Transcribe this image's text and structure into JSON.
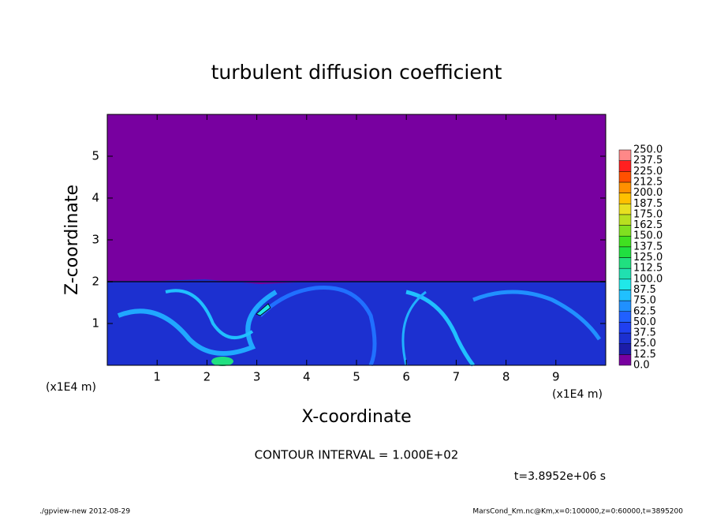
{
  "chart_data": {
    "type": "contour",
    "title": "turbulent diffusion coefficient",
    "x_label": "X-coordinate",
    "y_label": "Z-coordinate",
    "x_unit_label": "(x1E4 m)",
    "y_unit_label": "(x1E4 m)",
    "xlim": [
      0,
      10
    ],
    "xticks": [
      1,
      2,
      3,
      4,
      5,
      6,
      7,
      8,
      9
    ],
    "ylim": [
      0,
      6
    ],
    "yticks": [
      1,
      2,
      3,
      4,
      5
    ],
    "colorbar": {
      "clim": [
        0,
        250
      ],
      "levels": [
        {
          "value": 0,
          "label": "0.0"
        },
        12.5,
        {
          "value": 25,
          "label": "25.0"
        },
        37.5,
        {
          "value": 50,
          "label": "50.0"
        },
        62.5,
        {
          "value": 75,
          "label": "75.0"
        },
        87.5,
        {
          "value": 100,
          "label": "100.0"
        },
        112.5,
        {
          "value": 125,
          "label": "125.0"
        },
        137.5,
        {
          "value": 150,
          "label": "150.0"
        },
        162.5,
        {
          "value": 175,
          "label": "175.0"
        },
        187.5,
        {
          "value": 200,
          "label": "200.0"
        },
        212.5,
        {
          "value": 225,
          "label": "225.0"
        },
        237.5,
        {
          "value": 250,
          "label": "250.0"
        }
      ],
      "colors": [
        "#7800a0",
        "#1c1ca8",
        "#1c30d0",
        "#2040f0",
        "#2060ff",
        "#2090ff",
        "#20c0ff",
        "#20e8e8",
        "#20e0b0",
        "#20e080",
        "#20e040",
        "#40e020",
        "#80e020",
        "#b8e020",
        "#e8e020",
        "#ffc000",
        "#ff9000",
        "#ff5000",
        "#ff2020",
        "#ff8888"
      ]
    },
    "contour_interval": "CONTOUR INTERVAL = 1.000E+02",
    "time_label": "t=3.8952e+06 s",
    "footer_left": "./gpview-new  2012-08-29",
    "footer_right": "MarsCond_Km.nc@Km,x=0:100000,z=0:60000,t=3895200"
  }
}
